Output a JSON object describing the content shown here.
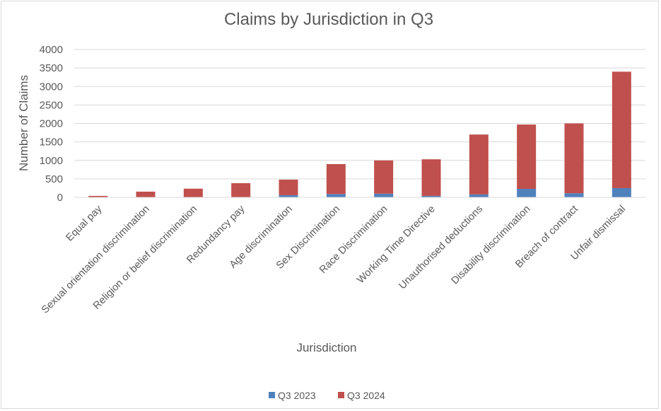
{
  "chart_data": {
    "type": "bar",
    "stacked": true,
    "title": "Claims by Jurisdiction in Q3",
    "xlabel": "Jurisdiction",
    "ylabel": "Number of Claims",
    "ylim": [
      0,
      4000
    ],
    "yticks": [
      0,
      500,
      1000,
      1500,
      2000,
      2500,
      3000,
      3500,
      4000
    ],
    "grid": true,
    "legend_position": "bottom",
    "categories": [
      "Equal pay",
      "Sexual orientation discrimination",
      "Religion or belief discrimination",
      "Redundancy pay",
      "Age discrimination",
      "Sex Discrimination",
      "Race Discrimination",
      "Working Time Directive",
      "Unauthorised deductions",
      "Disability discrimination",
      "Breach of contract",
      "Unfair dismissal"
    ],
    "series": [
      {
        "name": "Q3 2023",
        "color": "#4f81bd",
        "values": [
          5,
          5,
          5,
          5,
          60,
          90,
          100,
          40,
          80,
          230,
          110,
          250
        ]
      },
      {
        "name": "Q3 2024",
        "color": "#c0504d",
        "values": [
          35,
          150,
          230,
          380,
          420,
          810,
          900,
          990,
          1620,
          1740,
          1890,
          3150
        ]
      }
    ]
  }
}
